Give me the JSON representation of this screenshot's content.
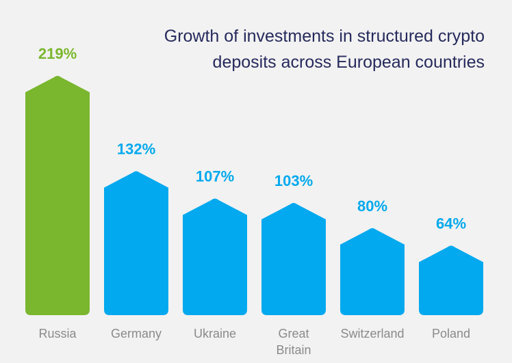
{
  "title": {
    "line1": "Growth of investments in structured crypto",
    "line2": "deposits across European countries"
  },
  "colors": {
    "background": "#f2f2f2",
    "highlight": "#7ab62e",
    "bar": "#03a9ee",
    "title": "#262a5c",
    "category_text": "#8a8a8a"
  },
  "chart_data": {
    "type": "bar",
    "title": "Growth of investments in structured crypto deposits across European countries",
    "categories": [
      "Russia",
      "Germany",
      "Ukraine",
      "Great Britain",
      "Switzerland",
      "Poland"
    ],
    "category_label_lines": [
      [
        "Russia"
      ],
      [
        "Germany"
      ],
      [
        "Ukraine"
      ],
      [
        "Great",
        "Britain"
      ],
      [
        "Switzerland"
      ],
      [
        "Poland"
      ]
    ],
    "values": [
      219,
      132,
      107,
      103,
      80,
      64
    ],
    "value_labels": [
      "219%",
      "132%",
      "107%",
      "103%",
      "80%",
      "64%"
    ],
    "highlighted_category": "Russia",
    "unit": "%",
    "ylim": [
      0,
      219
    ],
    "grid": false,
    "legend": "none"
  }
}
